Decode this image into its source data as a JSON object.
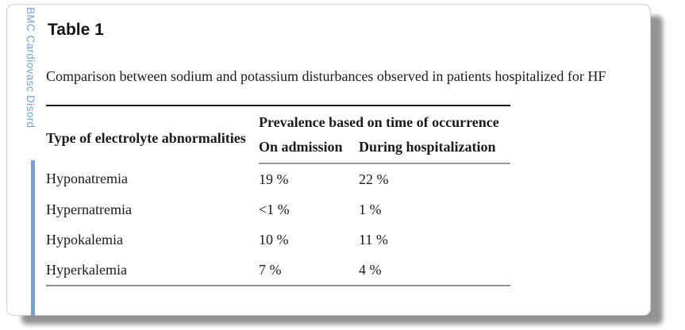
{
  "journal": {
    "name": "BMC Cardiovasc Disord"
  },
  "colors": {
    "journal_blue": "#74a3d9",
    "rule_dark": "#1a1a1a",
    "rule_gray": "#8e8e8e",
    "shadow_gray": "#a0a0a0"
  },
  "table": {
    "title": "Table 1",
    "caption": "Comparison between sodium and potassium disturbances observed in patients hospitalized for HF",
    "columns": {
      "row_header": "Type of electrolyte abnormalities",
      "group_header": "Prevalence based on time of occurrence",
      "sub_headers": [
        "On admission",
        "During hospitalization"
      ]
    },
    "rows": [
      {
        "label": "Hyponatremia",
        "on_admission": "19 %",
        "during_hospitalization": "22 %"
      },
      {
        "label": "Hypernatremia",
        "on_admission": "<1 %",
        "during_hospitalization": "1 %"
      },
      {
        "label": "Hypokalemia",
        "on_admission": "10 %",
        "during_hospitalization": "11 %"
      },
      {
        "label": "Hyperkalemia",
        "on_admission": "7 %",
        "during_hospitalization": "4 %"
      }
    ]
  }
}
